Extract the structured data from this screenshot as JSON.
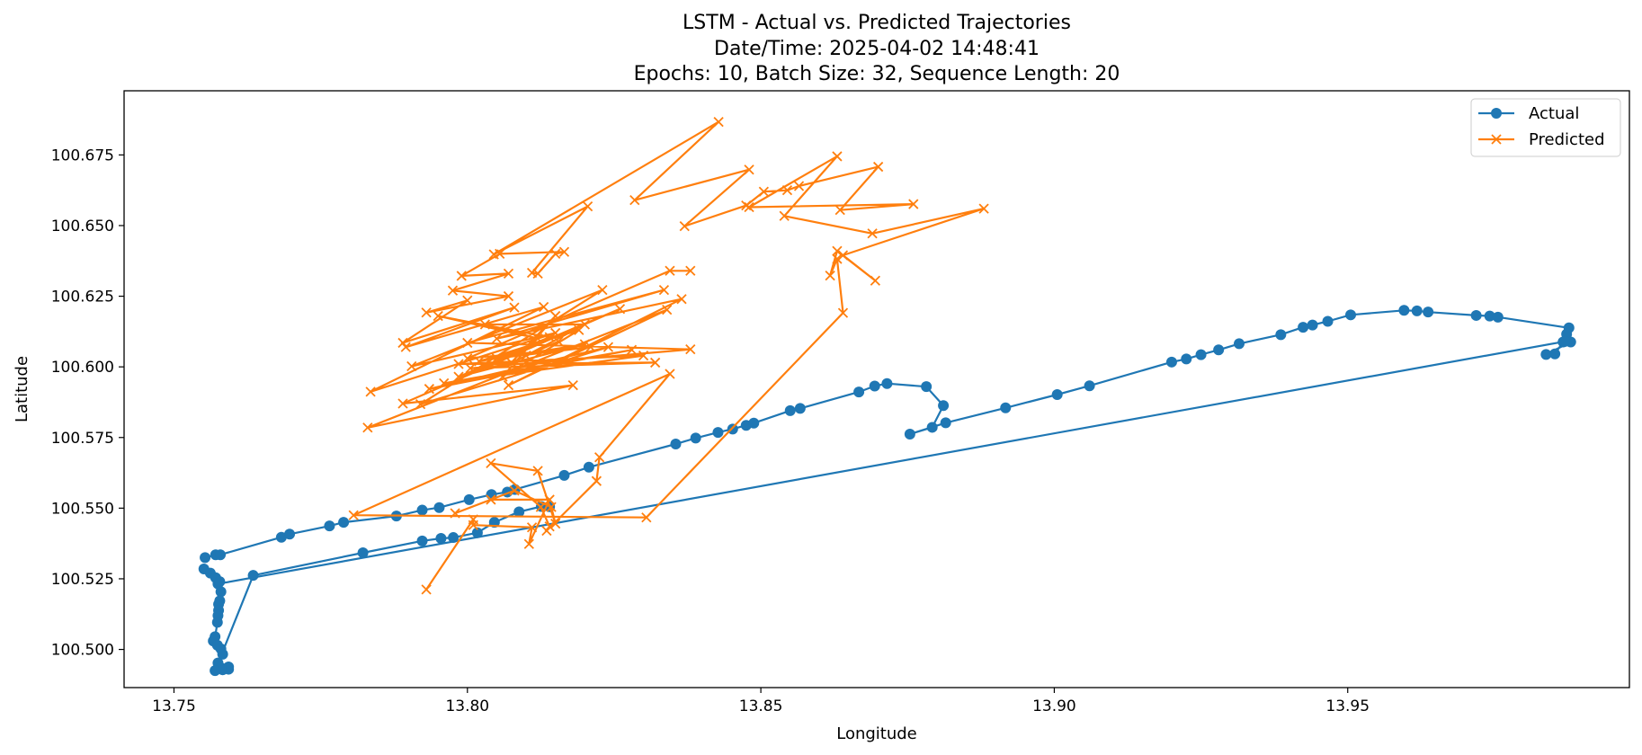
{
  "chart_data": {
    "type": "line",
    "title_lines": [
      "LSTM - Actual vs. Predicted Trajectories",
      "Date/Time: 2025-04-02 14:48:41",
      "Epochs: 10, Batch Size: 32, Sequence Length: 20"
    ],
    "xlabel": "Longitude",
    "ylabel": "Latitude",
    "xlim": [
      13.7415,
      13.998
    ],
    "ylim": [
      100.4865,
      100.6977
    ],
    "xticks": [
      13.75,
      13.8,
      13.85,
      13.9,
      13.95
    ],
    "xtick_labels": [
      "13.75",
      "13.80",
      "13.85",
      "13.90",
      "13.95"
    ],
    "yticks": [
      100.5,
      100.525,
      100.55,
      100.575,
      100.6,
      100.625,
      100.65,
      100.675
    ],
    "ytick_labels": [
      "100.500",
      "100.525",
      "100.550",
      "100.575",
      "100.600",
      "100.625",
      "100.650",
      "100.675"
    ],
    "legend_position": "top-right",
    "grid": false,
    "series": [
      {
        "name": "Actual",
        "color": "#1f77b4",
        "marker": "circle",
        "points": [
          [
            13.7553,
            100.5325
          ],
          [
            13.7571,
            100.5335
          ],
          [
            13.7579,
            100.5335
          ],
          [
            13.7683,
            100.5397
          ],
          [
            13.7697,
            100.5408
          ],
          [
            13.7765,
            100.5437
          ],
          [
            13.7789,
            100.545
          ],
          [
            13.7879,
            100.5472
          ],
          [
            13.7923,
            100.5493
          ],
          [
            13.7952,
            100.5502
          ],
          [
            13.8003,
            100.553
          ],
          [
            13.8041,
            100.5548
          ],
          [
            13.8068,
            100.5557
          ],
          [
            13.8081,
            100.5566
          ],
          [
            13.8165,
            100.5616
          ],
          [
            13.8207,
            100.5645
          ],
          [
            13.8355,
            100.5727
          ],
          [
            13.8389,
            100.5748
          ],
          [
            13.8427,
            100.5768
          ],
          [
            13.8452,
            100.578
          ],
          [
            13.8475,
            100.5793
          ],
          [
            13.8488,
            100.5801
          ],
          [
            13.855,
            100.5845
          ],
          [
            13.8567,
            100.5853
          ],
          [
            13.8667,
            100.5911
          ],
          [
            13.8694,
            100.5932
          ],
          [
            13.8715,
            100.5941
          ],
          [
            13.8782,
            100.593
          ],
          [
            13.8811,
            100.5863
          ],
          [
            13.8792,
            100.5786
          ],
          [
            13.8754,
            100.5762
          ],
          [
            13.8815,
            100.5802
          ],
          [
            13.8917,
            100.5855
          ],
          [
            13.9005,
            100.5902
          ],
          [
            13.906,
            100.5933
          ],
          [
            13.92,
            100.6017
          ],
          [
            13.9225,
            100.6028
          ],
          [
            13.925,
            100.6043
          ],
          [
            13.928,
            100.606
          ],
          [
            13.9315,
            100.6082
          ],
          [
            13.9386,
            100.6114
          ],
          [
            13.9424,
            100.614
          ],
          [
            13.944,
            100.6148
          ],
          [
            13.9466,
            100.6161
          ],
          [
            13.9505,
            100.6184
          ],
          [
            13.9596,
            100.62
          ],
          [
            13.9618,
            100.6198
          ],
          [
            13.9637,
            100.6194
          ],
          [
            13.9719,
            100.6182
          ],
          [
            13.9742,
            100.618
          ],
          [
            13.9756,
            100.6176
          ],
          [
            13.9877,
            100.6138
          ],
          [
            13.9873,
            100.6116
          ],
          [
            13.9867,
            100.6088
          ],
          [
            13.9853,
            100.6046
          ],
          [
            13.9838,
            100.6044
          ],
          [
            13.988,
            100.6088
          ],
          [
            13.987,
            100.609
          ],
          [
            13.7575,
            100.5232
          ],
          [
            13.7551,
            100.5285
          ],
          [
            13.7562,
            100.527
          ],
          [
            13.7571,
            100.5254
          ],
          [
            13.7578,
            100.524
          ],
          [
            13.758,
            100.5204
          ],
          [
            13.7578,
            100.5172
          ],
          [
            13.7576,
            100.516
          ],
          [
            13.7576,
            100.5138
          ],
          [
            13.7575,
            100.512
          ],
          [
            13.7574,
            100.5096
          ],
          [
            13.757,
            100.5045
          ],
          [
            13.7567,
            100.503
          ],
          [
            13.7574,
            100.5015
          ],
          [
            13.758,
            100.5002
          ],
          [
            13.7583,
            100.4983
          ],
          [
            13.7575,
            100.4952
          ],
          [
            13.7583,
            100.4928
          ],
          [
            13.7593,
            100.493
          ],
          [
            13.7593,
            100.4938
          ],
          [
            13.758,
            100.4935
          ],
          [
            13.757,
            100.4925
          ],
          [
            13.7635,
            100.5262
          ],
          [
            13.7822,
            100.5342
          ],
          [
            13.7923,
            100.5384
          ],
          [
            13.7955,
            100.5393
          ],
          [
            13.7976,
            100.5396
          ],
          [
            13.8017,
            100.5413
          ],
          [
            13.8046,
            100.545
          ],
          [
            13.8088,
            100.5487
          ],
          [
            13.8126,
            100.5506
          ],
          [
            13.814,
            100.5505
          ]
        ]
      },
      {
        "name": "Predicted",
        "color": "#ff7f0e",
        "marker": "x",
        "points": [
          [
            13.793,
            100.5212
          ],
          [
            13.801,
            100.546
          ],
          [
            13.801,
            100.544
          ],
          [
            13.811,
            100.5432
          ],
          [
            13.8105,
            100.5373
          ],
          [
            13.814,
            100.553
          ],
          [
            13.804,
            100.553
          ],
          [
            13.7979,
            100.5482
          ],
          [
            13.808,
            100.5562
          ],
          [
            13.8143,
            100.5504
          ],
          [
            13.815,
            100.5445
          ],
          [
            13.812,
            100.5632
          ],
          [
            13.804,
            100.5659
          ],
          [
            13.8125,
            100.5504
          ],
          [
            13.814,
            100.5435
          ],
          [
            13.8135,
            100.542
          ],
          [
            13.822,
            100.5596
          ],
          [
            13.8225,
            100.568
          ],
          [
            13.8345,
            100.5975
          ],
          [
            13.7806,
            100.5475
          ],
          [
            13.8305,
            100.5467
          ],
          [
            13.864,
            100.6191
          ],
          [
            13.863,
            100.6382
          ],
          [
            13.8618,
            100.6323
          ],
          [
            13.863,
            100.641
          ],
          [
            13.8695,
            100.6305
          ],
          [
            13.864,
            100.6395
          ],
          [
            13.888,
            100.656
          ],
          [
            13.869,
            100.6472
          ],
          [
            13.854,
            100.6534
          ],
          [
            13.863,
            100.6745
          ],
          [
            13.848,
            100.6565
          ],
          [
            13.876,
            100.6576
          ],
          [
            13.8635,
            100.6555
          ],
          [
            13.87,
            100.6708
          ],
          [
            13.8565,
            100.664
          ],
          [
            13.8545,
            100.6625
          ],
          [
            13.8505,
            100.662
          ],
          [
            13.8475,
            100.6571
          ],
          [
            13.837,
            100.6498
          ],
          [
            13.848,
            100.6698
          ],
          [
            13.8285,
            100.659
          ],
          [
            13.8428,
            100.6867
          ],
          [
            13.8045,
            100.6398
          ],
          [
            13.8205,
            100.6568
          ],
          [
            13.811,
            100.6333
          ],
          [
            13.812,
            100.633
          ],
          [
            13.815,
            100.64
          ],
          [
            13.8165,
            100.6407
          ],
          [
            13.8055,
            100.64
          ],
          [
            13.799,
            100.6322
          ],
          [
            13.807,
            100.633
          ],
          [
            13.7975,
            100.627
          ],
          [
            13.807,
            100.625
          ],
          [
            13.793,
            100.6192
          ],
          [
            13.8,
            100.6235
          ],
          [
            13.789,
            100.6085
          ],
          [
            13.808,
            100.621
          ],
          [
            13.7895,
            100.607
          ],
          [
            13.813,
            100.6212
          ],
          [
            13.7835,
            100.5912
          ],
          [
            13.815,
            100.612
          ],
          [
            13.7905,
            100.6002
          ],
          [
            13.823,
            100.6272
          ],
          [
            13.792,
            100.5868
          ],
          [
            13.824,
            100.607
          ],
          [
            13.7935,
            100.5922
          ],
          [
            13.828,
            100.606
          ],
          [
            13.796,
            100.5942
          ],
          [
            13.83,
            100.604
          ],
          [
            13.7985,
            100.601
          ],
          [
            13.832,
            100.6015
          ],
          [
            13.8005,
            100.5995
          ],
          [
            13.838,
            100.6062
          ],
          [
            13.8,
            100.6085
          ],
          [
            13.8335,
            100.6272
          ],
          [
            13.805,
            100.61
          ],
          [
            13.8365,
            100.624
          ],
          [
            13.807,
            100.5935
          ],
          [
            13.834,
            100.6202
          ],
          [
            13.783,
            100.5785
          ],
          [
            13.818,
            100.5935
          ],
          [
            13.789,
            100.587
          ],
          [
            13.826,
            100.6205
          ],
          [
            13.7985,
            100.5965
          ],
          [
            13.82,
            100.608
          ],
          [
            13.802,
            100.602
          ],
          [
            13.819,
            100.613
          ],
          [
            13.806,
            100.5965
          ],
          [
            13.815,
            100.618
          ],
          [
            13.8075,
            100.6015
          ],
          [
            13.8155,
            100.609
          ],
          [
            13.81,
            100.604
          ],
          [
            13.82,
            100.615
          ],
          [
            13.803,
            100.615
          ],
          [
            13.812,
            100.61
          ],
          [
            13.795,
            100.618
          ],
          [
            13.814,
            100.6105
          ],
          [
            13.805,
            100.603
          ],
          [
            13.821,
            100.607
          ],
          [
            13.8,
            100.603
          ],
          [
            13.8345,
            100.634
          ],
          [
            13.838,
            100.634
          ]
        ]
      }
    ]
  }
}
